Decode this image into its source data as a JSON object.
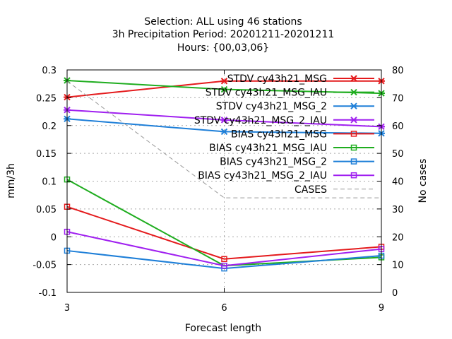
{
  "chart_data": {
    "type": "line",
    "title_lines": [
      "Selection: ALL using    46 stations",
      "3h Precipitation   Period: 20201211-20201211",
      "Hours: {00,03,06}"
    ],
    "xlabel": "Forecast length",
    "ylabel": "mm/3h",
    "y2label": "No cases",
    "x": [
      3,
      6,
      9
    ],
    "xticks": [
      "3",
      "6",
      "9"
    ],
    "ylim": [
      -0.1,
      0.3
    ],
    "yticks": [
      "-0.1",
      "-0.05",
      "0",
      "0.05",
      "0.1",
      "0.15",
      "0.2",
      "0.25",
      "0.3"
    ],
    "y2lim": [
      0,
      80
    ],
    "y2ticks": [
      "0",
      "10",
      "20",
      "30",
      "40",
      "50",
      "60",
      "70",
      "80"
    ],
    "grid": true,
    "legend_position": "top-right",
    "series": [
      {
        "name": "STDV cy43h21_MSG",
        "color": "#e41a1c",
        "marker": "x",
        "values": [
          0.251,
          0.28,
          0.28
        ]
      },
      {
        "name": "STDV cy43h21_MSG_IAU",
        "color": "#1fad1f",
        "marker": "x",
        "values": [
          0.281,
          0.265,
          0.258
        ]
      },
      {
        "name": "STDV cy43h21_MSG_2",
        "color": "#1e7fd8",
        "marker": "x",
        "values": [
          0.212,
          0.189,
          0.186
        ]
      },
      {
        "name": "STDV cy43h21_MSG_2_IAU",
        "color": "#a020f0",
        "marker": "x",
        "values": [
          0.228,
          0.21,
          0.198
        ]
      },
      {
        "name": "BIAS cy43h21_MSG",
        "color": "#e41a1c",
        "marker": "square",
        "values": [
          0.054,
          -0.04,
          -0.018
        ]
      },
      {
        "name": "BIAS cy43h21_MSG_IAU",
        "color": "#1fad1f",
        "marker": "square",
        "values": [
          0.103,
          -0.052,
          -0.037
        ]
      },
      {
        "name": "BIAS cy43h21_MSG_2",
        "color": "#1e7fd8",
        "marker": "square",
        "values": [
          -0.025,
          -0.057,
          -0.034
        ]
      },
      {
        "name": "BIAS cy43h21_MSG_2_IAU",
        "color": "#a020f0",
        "marker": "square",
        "values": [
          0.009,
          -0.052,
          -0.022
        ]
      },
      {
        "name": "CASES",
        "color": "#999999",
        "marker": "none",
        "dashed": true,
        "axis": "y2",
        "values": [
          76,
          34,
          34
        ]
      }
    ]
  }
}
